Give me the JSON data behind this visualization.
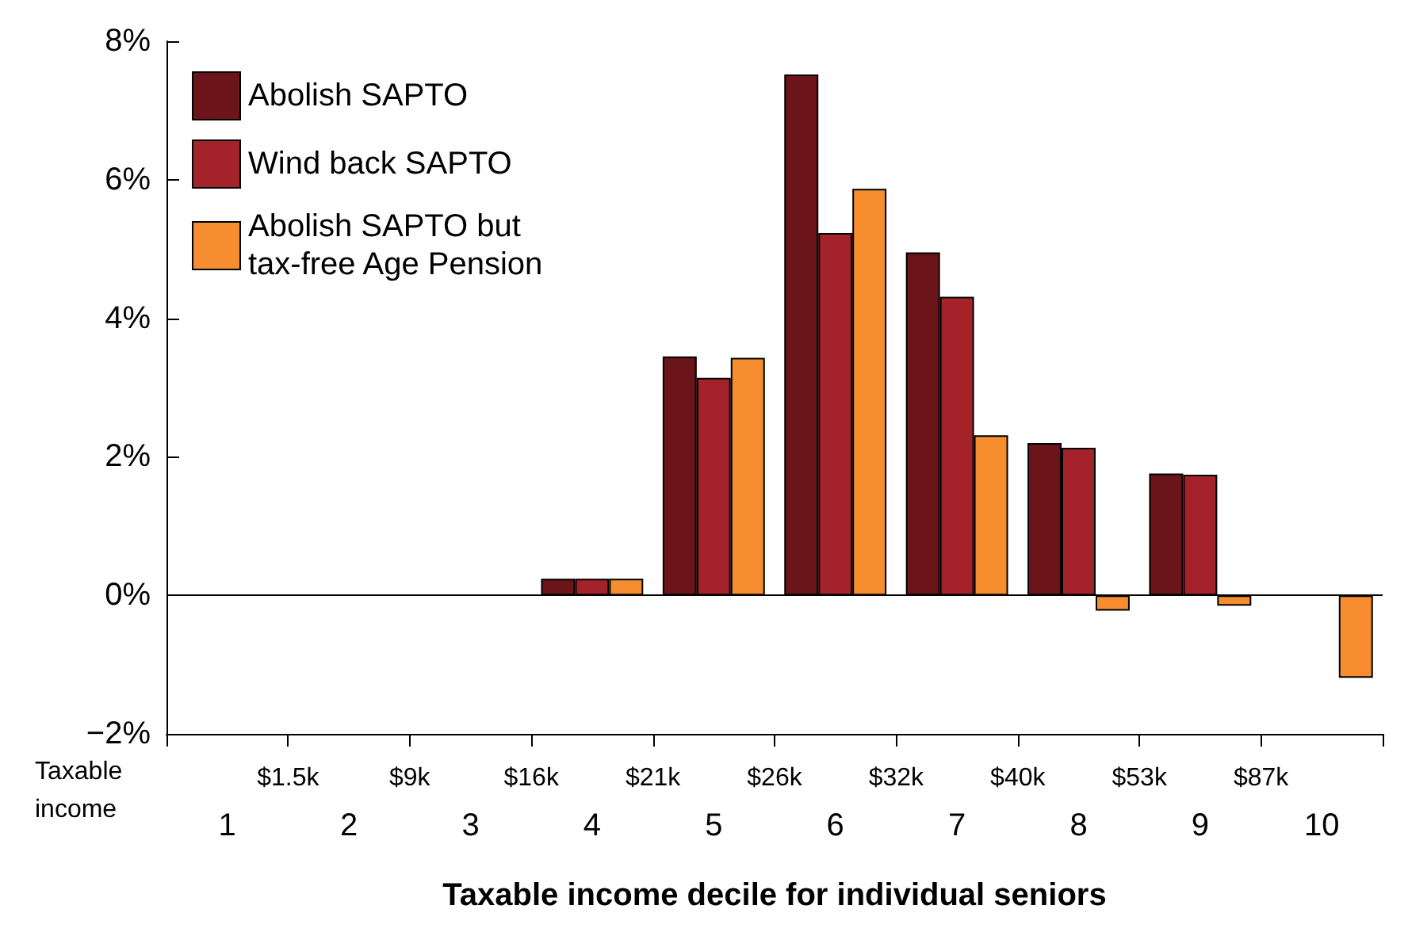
{
  "chart_data": {
    "type": "bar",
    "xlabel": "Taxable income decile for individual seniors",
    "categories": [
      "1",
      "2",
      "3",
      "4",
      "5",
      "6",
      "7",
      "8",
      "9",
      "10"
    ],
    "series": [
      {
        "name": "Abolish SAPTO",
        "color": "#6b1419",
        "values": [
          0,
          0,
          0,
          0.24,
          3.45,
          7.52,
          4.95,
          2.2,
          1.76,
          0
        ]
      },
      {
        "name": "Wind back SAPTO",
        "color": "#a4222a",
        "values": [
          0,
          0,
          0,
          0.24,
          3.14,
          5.23,
          4.31,
          2.13,
          1.74,
          0
        ]
      },
      {
        "name": "Abolish SAPTO but\ntax-free Age Pension",
        "color": "#f68e30",
        "values": [
          0,
          0,
          0,
          0.24,
          3.43,
          5.87,
          2.31,
          -0.22,
          -0.15,
          -1.19
        ]
      }
    ],
    "ylim": [
      -2,
      8
    ],
    "yticks": [
      {
        "value": -2,
        "label": "−2%"
      },
      {
        "value": 0,
        "label": "0%"
      },
      {
        "value": 2,
        "label": "2%"
      },
      {
        "value": 4,
        "label": "4%"
      },
      {
        "value": 6,
        "label": "6%"
      },
      {
        "value": 8,
        "label": "8%"
      }
    ],
    "annotations": [
      "Taxable income",
      "$1.5k",
      "$9k",
      "$16k",
      "$21k",
      "$26k",
      "$32k",
      "$40k",
      "$53k",
      "$87k"
    ],
    "ref_lines": [
      {
        "axis": "y",
        "value": 0,
        "color": "#000000"
      }
    ],
    "grid": false,
    "legend": "top left"
  }
}
